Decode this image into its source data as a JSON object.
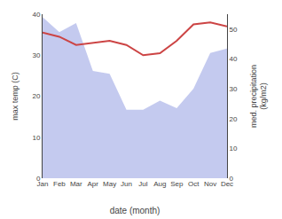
{
  "chart_data": {
    "type": "line",
    "xlabel": "date (month)",
    "ylabel": "max temp (C)",
    "y2label": "med. precipitation\n(kg/m2)",
    "categories": [
      "Jan",
      "Feb",
      "Mar",
      "Apr",
      "May",
      "Jun",
      "Jul",
      "Aug",
      "Sep",
      "Oct",
      "Nov",
      "Dec"
    ],
    "series": [
      {
        "type": "area",
        "axis": "y2",
        "color": "#b0b8ea",
        "values": [
          54.0,
          49.0,
          52.0,
          36.0,
          35.0,
          23.0,
          23.0,
          26.0,
          23.5,
          30.0,
          42.0,
          43.5
        ]
      },
      {
        "type": "line",
        "color": "#cc4444",
        "values": [
          35.5,
          34.5,
          32.5,
          33.0,
          33.5,
          32.5,
          30.0,
          30.5,
          33.5,
          37.5,
          38.0,
          37.0
        ]
      }
    ],
    "ylim": [
      0,
      40
    ],
    "yticks": [
      0,
      10,
      20,
      30,
      40
    ],
    "y2lim": [
      0,
      55
    ],
    "y2ticks": [
      0,
      10,
      20,
      30,
      40,
      50
    ],
    "grid": false
  }
}
